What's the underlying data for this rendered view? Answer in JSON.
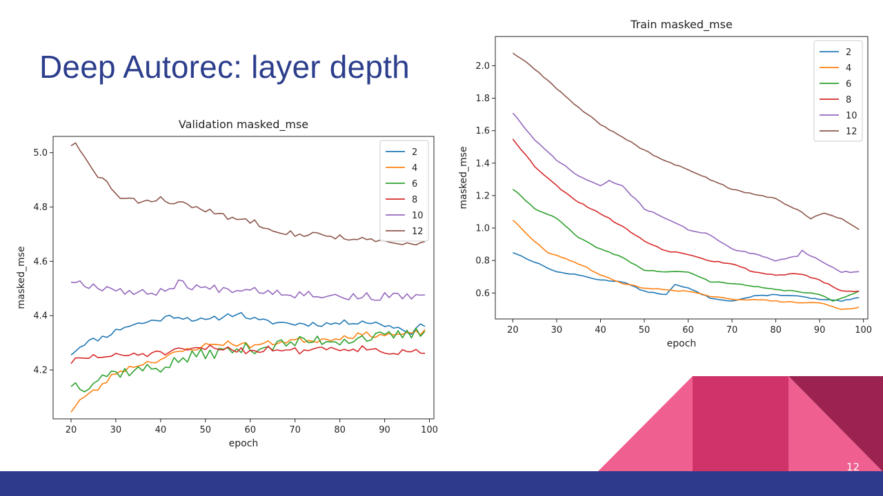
{
  "slide": {
    "title": "Deep Autorec: layer depth",
    "page_number": "12",
    "colors": {
      "title": "#2c3e8c",
      "footer": "#2e3a8c",
      "accent_pink": "#ef5f8f",
      "accent_crimson": "#d0336a",
      "accent_dark": "#9b2251"
    }
  },
  "chart_data": [
    {
      "id": "validation",
      "type": "line",
      "title": "Validation masked_mse",
      "xlabel": "epoch",
      "ylabel": "masked_mse",
      "xlim": [
        16,
        101
      ],
      "ylim": [
        4.02,
        5.06
      ],
      "xticks": [
        20,
        30,
        40,
        50,
        60,
        70,
        80,
        90,
        100
      ],
      "yticks": [
        4.2,
        4.4,
        4.6,
        4.8,
        5.0
      ],
      "ytick_labels": [
        "4.2",
        "4.4",
        "4.6",
        "4.8",
        "5.0"
      ],
      "legend_position": "top-right",
      "x_start": 20,
      "x_end": 99,
      "series": [
        {
          "name": "2",
          "color": "#1f77b4",
          "noise": 0.01,
          "seed": 11,
          "knots": [
            [
              20,
              4.26
            ],
            [
              23,
              4.3
            ],
            [
              27,
              4.32
            ],
            [
              32,
              4.36
            ],
            [
              38,
              4.38
            ],
            [
              43,
              4.4
            ],
            [
              50,
              4.38
            ],
            [
              57,
              4.41
            ],
            [
              62,
              4.38
            ],
            [
              70,
              4.37
            ],
            [
              78,
              4.37
            ],
            [
              85,
              4.38
            ],
            [
              92,
              4.36
            ],
            [
              96,
              4.34
            ],
            [
              99,
              4.37
            ]
          ]
        },
        {
          "name": "4",
          "color": "#ff7f0e",
          "noise": 0.01,
          "seed": 23,
          "knots": [
            [
              20,
              4.05
            ],
            [
              22,
              4.09
            ],
            [
              26,
              4.13
            ],
            [
              30,
              4.19
            ],
            [
              35,
              4.22
            ],
            [
              40,
              4.24
            ],
            [
              45,
              4.27
            ],
            [
              50,
              4.29
            ],
            [
              55,
              4.3
            ],
            [
              60,
              4.29
            ],
            [
              65,
              4.3
            ],
            [
              70,
              4.31
            ],
            [
              75,
              4.31
            ],
            [
              80,
              4.32
            ],
            [
              85,
              4.33
            ],
            [
              90,
              4.33
            ],
            [
              95,
              4.33
            ],
            [
              99,
              4.34
            ]
          ]
        },
        {
          "name": "6",
          "color": "#2ca02c",
          "noise": 0.022,
          "seed": 37,
          "knots": [
            [
              20,
              4.15
            ],
            [
              23,
              4.14
            ],
            [
              27,
              4.18
            ],
            [
              30,
              4.19
            ],
            [
              35,
              4.2
            ],
            [
              40,
              4.21
            ],
            [
              45,
              4.24
            ],
            [
              50,
              4.26
            ],
            [
              55,
              4.27
            ],
            [
              60,
              4.28
            ],
            [
              65,
              4.29
            ],
            [
              70,
              4.3
            ],
            [
              75,
              4.31
            ],
            [
              80,
              4.31
            ],
            [
              85,
              4.32
            ],
            [
              90,
              4.32
            ],
            [
              95,
              4.33
            ],
            [
              99,
              4.34
            ]
          ]
        },
        {
          "name": "8",
          "color": "#d62728",
          "noise": 0.013,
          "seed": 51,
          "knots": [
            [
              20,
              4.23
            ],
            [
              25,
              4.25
            ],
            [
              30,
              4.25
            ],
            [
              35,
              4.26
            ],
            [
              40,
              4.26
            ],
            [
              45,
              4.27
            ],
            [
              50,
              4.28
            ],
            [
              55,
              4.28
            ],
            [
              60,
              4.27
            ],
            [
              65,
              4.28
            ],
            [
              70,
              4.27
            ],
            [
              75,
              4.28
            ],
            [
              80,
              4.28
            ],
            [
              85,
              4.28
            ],
            [
              90,
              4.27
            ],
            [
              95,
              4.26
            ],
            [
              99,
              4.27
            ]
          ]
        },
        {
          "name": "10",
          "color": "#9467bd",
          "noise": 0.015,
          "seed": 67,
          "knots": [
            [
              20,
              4.53
            ],
            [
              25,
              4.51
            ],
            [
              30,
              4.5
            ],
            [
              35,
              4.48
            ],
            [
              40,
              4.49
            ],
            [
              44,
              4.52
            ],
            [
              50,
              4.5
            ],
            [
              55,
              4.5
            ],
            [
              60,
              4.5
            ],
            [
              65,
              4.49
            ],
            [
              70,
              4.48
            ],
            [
              75,
              4.48
            ],
            [
              80,
              4.47
            ],
            [
              85,
              4.47
            ],
            [
              90,
              4.47
            ],
            [
              95,
              4.47
            ],
            [
              99,
              4.48
            ]
          ]
        },
        {
          "name": "12",
          "color": "#8c564b",
          "noise": 0.01,
          "seed": 83,
          "knots": [
            [
              20,
              5.03
            ],
            [
              21,
              5.03
            ],
            [
              23,
              4.98
            ],
            [
              25,
              4.93
            ],
            [
              28,
              4.89
            ],
            [
              31,
              4.83
            ],
            [
              35,
              4.82
            ],
            [
              40,
              4.83
            ],
            [
              45,
              4.81
            ],
            [
              50,
              4.79
            ],
            [
              55,
              4.76
            ],
            [
              60,
              4.75
            ],
            [
              65,
              4.72
            ],
            [
              70,
              4.7
            ],
            [
              75,
              4.7
            ],
            [
              80,
              4.69
            ],
            [
              85,
              4.68
            ],
            [
              90,
              4.67
            ],
            [
              95,
              4.66
            ],
            [
              99,
              4.67
            ]
          ]
        }
      ]
    },
    {
      "id": "train",
      "type": "line",
      "title": "Train masked_mse",
      "xlabel": "epoch",
      "ylabel": "masked_mse",
      "xlim": [
        16,
        101
      ],
      "ylim": [
        0.44,
        2.18
      ],
      "xticks": [
        20,
        30,
        40,
        50,
        60,
        70,
        80,
        90,
        100
      ],
      "yticks": [
        0.6,
        0.8,
        1.0,
        1.2,
        1.4,
        1.6,
        1.8,
        2.0
      ],
      "ytick_labels": [
        "0.6",
        "0.8",
        "1.0",
        "1.2",
        "1.4",
        "1.6",
        "1.8",
        "2.0"
      ],
      "legend_position": "top-right",
      "x_start": 20,
      "x_end": 99,
      "series": [
        {
          "name": "2",
          "color": "#1f77b4",
          "noise": 0.003,
          "seed": 13,
          "knots": [
            [
              20,
              0.85
            ],
            [
              25,
              0.79
            ],
            [
              30,
              0.73
            ],
            [
              35,
              0.71
            ],
            [
              40,
              0.68
            ],
            [
              45,
              0.67
            ],
            [
              50,
              0.61
            ],
            [
              55,
              0.59
            ],
            [
              57,
              0.65
            ],
            [
              60,
              0.63
            ],
            [
              65,
              0.57
            ],
            [
              70,
              0.55
            ],
            [
              75,
              0.58
            ],
            [
              80,
              0.59
            ],
            [
              85,
              0.58
            ],
            [
              90,
              0.56
            ],
            [
              95,
              0.55
            ],
            [
              99,
              0.57
            ]
          ]
        },
        {
          "name": "4",
          "color": "#ff7f0e",
          "noise": 0.003,
          "seed": 29,
          "knots": [
            [
              20,
              1.05
            ],
            [
              24,
              0.94
            ],
            [
              28,
              0.85
            ],
            [
              32,
              0.81
            ],
            [
              36,
              0.77
            ],
            [
              40,
              0.71
            ],
            [
              45,
              0.66
            ],
            [
              50,
              0.63
            ],
            [
              55,
              0.62
            ],
            [
              60,
              0.61
            ],
            [
              65,
              0.58
            ],
            [
              70,
              0.56
            ],
            [
              75,
              0.56
            ],
            [
              80,
              0.55
            ],
            [
              85,
              0.54
            ],
            [
              90,
              0.54
            ],
            [
              95,
              0.5
            ],
            [
              99,
              0.51
            ]
          ]
        },
        {
          "name": "6",
          "color": "#2ca02c",
          "noise": 0.003,
          "seed": 41,
          "knots": [
            [
              20,
              1.24
            ],
            [
              25,
              1.12
            ],
            [
              30,
              1.06
            ],
            [
              35,
              0.94
            ],
            [
              40,
              0.87
            ],
            [
              45,
              0.82
            ],
            [
              50,
              0.74
            ],
            [
              55,
              0.73
            ],
            [
              60,
              0.73
            ],
            [
              65,
              0.67
            ],
            [
              70,
              0.66
            ],
            [
              75,
              0.64
            ],
            [
              80,
              0.62
            ],
            [
              85,
              0.61
            ],
            [
              90,
              0.59
            ],
            [
              93,
              0.55
            ],
            [
              95,
              0.57
            ],
            [
              99,
              0.61
            ]
          ]
        },
        {
          "name": "8",
          "color": "#d62728",
          "noise": 0.004,
          "seed": 53,
          "knots": [
            [
              20,
              1.55
            ],
            [
              25,
              1.38
            ],
            [
              30,
              1.26
            ],
            [
              35,
              1.16
            ],
            [
              40,
              1.09
            ],
            [
              45,
              1.01
            ],
            [
              50,
              0.92
            ],
            [
              55,
              0.86
            ],
            [
              60,
              0.84
            ],
            [
              65,
              0.8
            ],
            [
              70,
              0.78
            ],
            [
              75,
              0.73
            ],
            [
              80,
              0.71
            ],
            [
              85,
              0.72
            ],
            [
              90,
              0.68
            ],
            [
              95,
              0.61
            ],
            [
              99,
              0.61
            ]
          ]
        },
        {
          "name": "10",
          "color": "#9467bd",
          "noise": 0.004,
          "seed": 71,
          "knots": [
            [
              20,
              1.71
            ],
            [
              25,
              1.54
            ],
            [
              30,
              1.42
            ],
            [
              35,
              1.32
            ],
            [
              40,
              1.26
            ],
            [
              42,
              1.29
            ],
            [
              45,
              1.26
            ],
            [
              50,
              1.12
            ],
            [
              55,
              1.06
            ],
            [
              60,
              0.99
            ],
            [
              65,
              0.96
            ],
            [
              70,
              0.87
            ],
            [
              75,
              0.84
            ],
            [
              80,
              0.8
            ],
            [
              85,
              0.83
            ],
            [
              86,
              0.86
            ],
            [
              90,
              0.8
            ],
            [
              95,
              0.73
            ],
            [
              99,
              0.73
            ]
          ]
        },
        {
          "name": "12",
          "color": "#8c564b",
          "noise": 0.004,
          "seed": 89,
          "knots": [
            [
              20,
              2.08
            ],
            [
              25,
              1.98
            ],
            [
              30,
              1.86
            ],
            [
              35,
              1.74
            ],
            [
              40,
              1.64
            ],
            [
              45,
              1.56
            ],
            [
              50,
              1.48
            ],
            [
              55,
              1.41
            ],
            [
              60,
              1.36
            ],
            [
              65,
              1.3
            ],
            [
              70,
              1.24
            ],
            [
              75,
              1.21
            ],
            [
              80,
              1.18
            ],
            [
              85,
              1.11
            ],
            [
              88,
              1.06
            ],
            [
              91,
              1.09
            ],
            [
              95,
              1.06
            ],
            [
              99,
              0.99
            ]
          ]
        }
      ]
    }
  ]
}
